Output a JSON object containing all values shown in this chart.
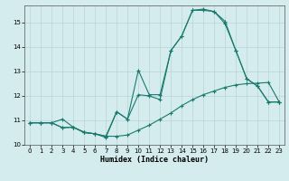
{
  "xlabel": "Humidex (Indice chaleur)",
  "background_color": "#d4ecee",
  "grid_color": "#b8d4d6",
  "line_color": "#1a7a6e",
  "xlim": [
    -0.5,
    23.5
  ],
  "ylim": [
    10.0,
    15.7
  ],
  "yticks": [
    10,
    11,
    12,
    13,
    14,
    15
  ],
  "xticks": [
    0,
    1,
    2,
    3,
    4,
    5,
    6,
    7,
    8,
    9,
    10,
    11,
    12,
    13,
    14,
    15,
    16,
    17,
    18,
    19,
    20,
    21,
    22,
    23
  ],
  "line1_x": [
    0,
    1,
    2,
    3,
    4,
    5,
    6,
    7,
    8,
    9,
    10,
    11,
    12,
    13,
    14,
    15,
    16,
    17,
    18,
    19,
    20,
    21,
    22,
    23
  ],
  "line1_y": [
    10.9,
    10.9,
    10.9,
    11.05,
    10.72,
    10.52,
    10.45,
    10.35,
    10.35,
    10.4,
    10.6,
    10.8,
    11.05,
    11.3,
    11.6,
    11.85,
    12.05,
    12.2,
    12.35,
    12.45,
    12.5,
    12.52,
    12.55,
    11.75
  ],
  "line2_x": [
    0,
    1,
    2,
    3,
    4,
    5,
    6,
    7,
    8,
    9,
    10,
    11,
    12,
    13,
    14,
    15,
    16,
    17,
    18,
    19,
    20,
    21,
    22,
    23
  ],
  "line2_y": [
    10.9,
    10.9,
    10.9,
    10.7,
    10.72,
    10.5,
    10.45,
    10.35,
    11.35,
    11.05,
    13.05,
    12.05,
    12.05,
    13.85,
    14.45,
    15.5,
    15.55,
    15.45,
    14.95,
    13.85,
    12.7,
    12.4,
    11.75,
    11.75
  ],
  "line3_x": [
    0,
    1,
    2,
    3,
    4,
    5,
    6,
    7,
    8,
    9,
    10,
    11,
    12,
    13,
    14,
    15,
    16,
    17,
    18,
    19,
    20,
    21,
    22,
    23
  ],
  "line3_y": [
    10.9,
    10.9,
    10.9,
    10.7,
    10.72,
    10.5,
    10.45,
    10.3,
    11.35,
    11.05,
    12.05,
    12.0,
    11.85,
    13.85,
    14.45,
    15.5,
    15.5,
    15.45,
    15.05,
    13.85,
    12.7,
    12.4,
    11.75,
    11.75
  ]
}
